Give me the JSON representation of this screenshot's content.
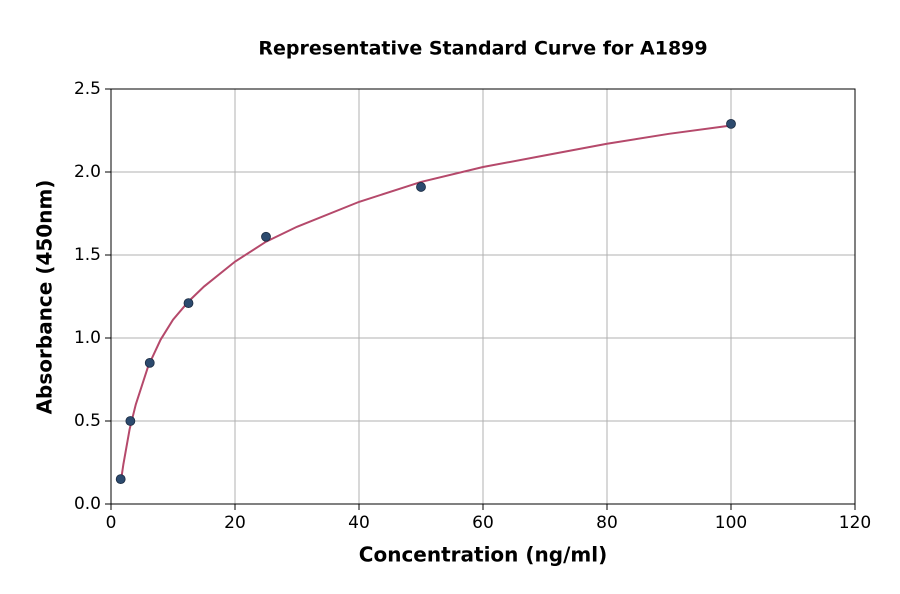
{
  "chart_data": {
    "type": "scatter",
    "title": "Representative Standard Curve for A1899",
    "xlabel": "Concentration (ng/ml)",
    "ylabel": "Absorbance (450nm)",
    "xlim": [
      0,
      120
    ],
    "ylim": [
      0,
      2.5
    ],
    "xticks": [
      0,
      20,
      40,
      60,
      80,
      100,
      120
    ],
    "yticks": [
      {
        "value": 0,
        "label": "0.0"
      },
      0.5,
      {
        "value": 1,
        "label": "1.0"
      },
      1.5,
      {
        "value": 2,
        "label": "2.0"
      },
      2.5
    ],
    "grid": true,
    "series": [
      {
        "type": "scatter",
        "color": "#2c4a6e",
        "x": [
          1.563,
          3.125,
          6.25,
          12.5,
          25,
          50,
          100
        ],
        "values": [
          0.15,
          0.5,
          0.85,
          1.21,
          1.61,
          1.91,
          2.29
        ]
      },
      {
        "type": "line",
        "color": "#b5496b",
        "x": [
          1.563,
          2,
          3,
          4,
          6,
          8,
          10,
          12.5,
          15,
          20,
          25,
          30,
          40,
          50,
          60,
          70,
          80,
          90,
          100
        ],
        "values": [
          0.13,
          0.24,
          0.45,
          0.6,
          0.83,
          0.99,
          1.11,
          1.22,
          1.31,
          1.46,
          1.58,
          1.67,
          1.82,
          1.94,
          2.03,
          2.1,
          2.17,
          2.23,
          2.28
        ]
      }
    ]
  }
}
